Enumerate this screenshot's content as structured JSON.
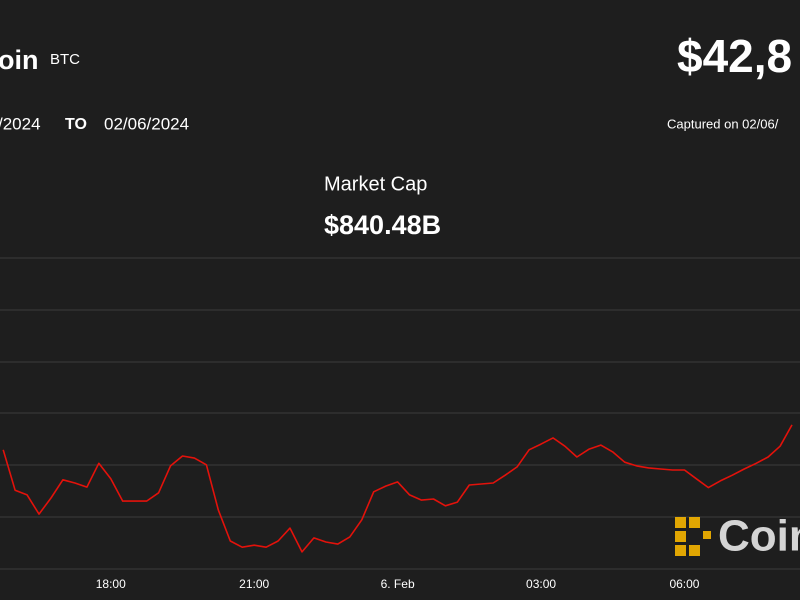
{
  "chart_data": {
    "type": "line",
    "name": "oin",
    "symbol": "BTC",
    "price": "$42,8",
    "date_from": "/2024",
    "to_label": "TO",
    "date_to": "02/06/2024",
    "captured": "Captured on 02/06/",
    "title": "Market Cap",
    "subtitle": "$840.48B",
    "watermark": "Coin",
    "x": [
      "15:45",
      "16:00",
      "16:15",
      "16:30",
      "16:45",
      "17:00",
      "17:15",
      "17:30",
      "17:45",
      "18:00",
      "18:15",
      "18:30",
      "18:45",
      "19:00",
      "19:15",
      "19:30",
      "19:45",
      "20:00",
      "20:15",
      "20:30",
      "20:45",
      "21:00",
      "21:15",
      "21:30",
      "21:45",
      "22:00",
      "22:15",
      "22:30",
      "22:45",
      "23:00",
      "23:15",
      "23:30",
      "23:45",
      "00:00",
      "00:15",
      "00:30",
      "00:45",
      "01:00",
      "01:15",
      "01:30",
      "01:45",
      "02:00",
      "02:15",
      "02:30",
      "02:45",
      "03:00",
      "03:15",
      "03:30",
      "03:45",
      "04:00",
      "04:15",
      "04:30",
      "04:45",
      "05:00",
      "05:15",
      "05:30",
      "05:45",
      "06:00",
      "06:15",
      "06:30",
      "06:45",
      "07:00",
      "07:15",
      "07:30",
      "07:45",
      "08:00",
      "08:15"
    ],
    "series": [
      {
        "color": "#e3120b",
        "values": [
          42780,
          42702,
          42693,
          42656,
          42687,
          42722,
          42716,
          42708,
          42754,
          42724,
          42681,
          42681,
          42681,
          42697,
          42749,
          42768,
          42764,
          42751,
          42664,
          42604,
          42592,
          42596,
          42592,
          42604,
          42629,
          42583,
          42610,
          42602,
          42598,
          42612,
          42645,
          42699,
          42710,
          42718,
          42693,
          42683,
          42685,
          42672,
          42679,
          42712,
          42714,
          42716,
          42731,
          42747,
          42780,
          42791,
          42803,
          42787,
          42766,
          42781,
          42789,
          42776,
          42756,
          42749,
          42745,
          42743,
          42741,
          42741,
          42724,
          42707,
          42720,
          42731,
          42743,
          42754,
          42766,
          42787,
          42828
        ]
      }
    ],
    "xlim": [
      "15:41",
      "08:25"
    ],
    "xticks": [
      "18:00",
      "21:00",
      {
        "value": "00:00",
        "label": "6. Feb"
      },
      "03:00",
      "06:00"
    ],
    "ylim": [
      42550,
      43150
    ]
  }
}
